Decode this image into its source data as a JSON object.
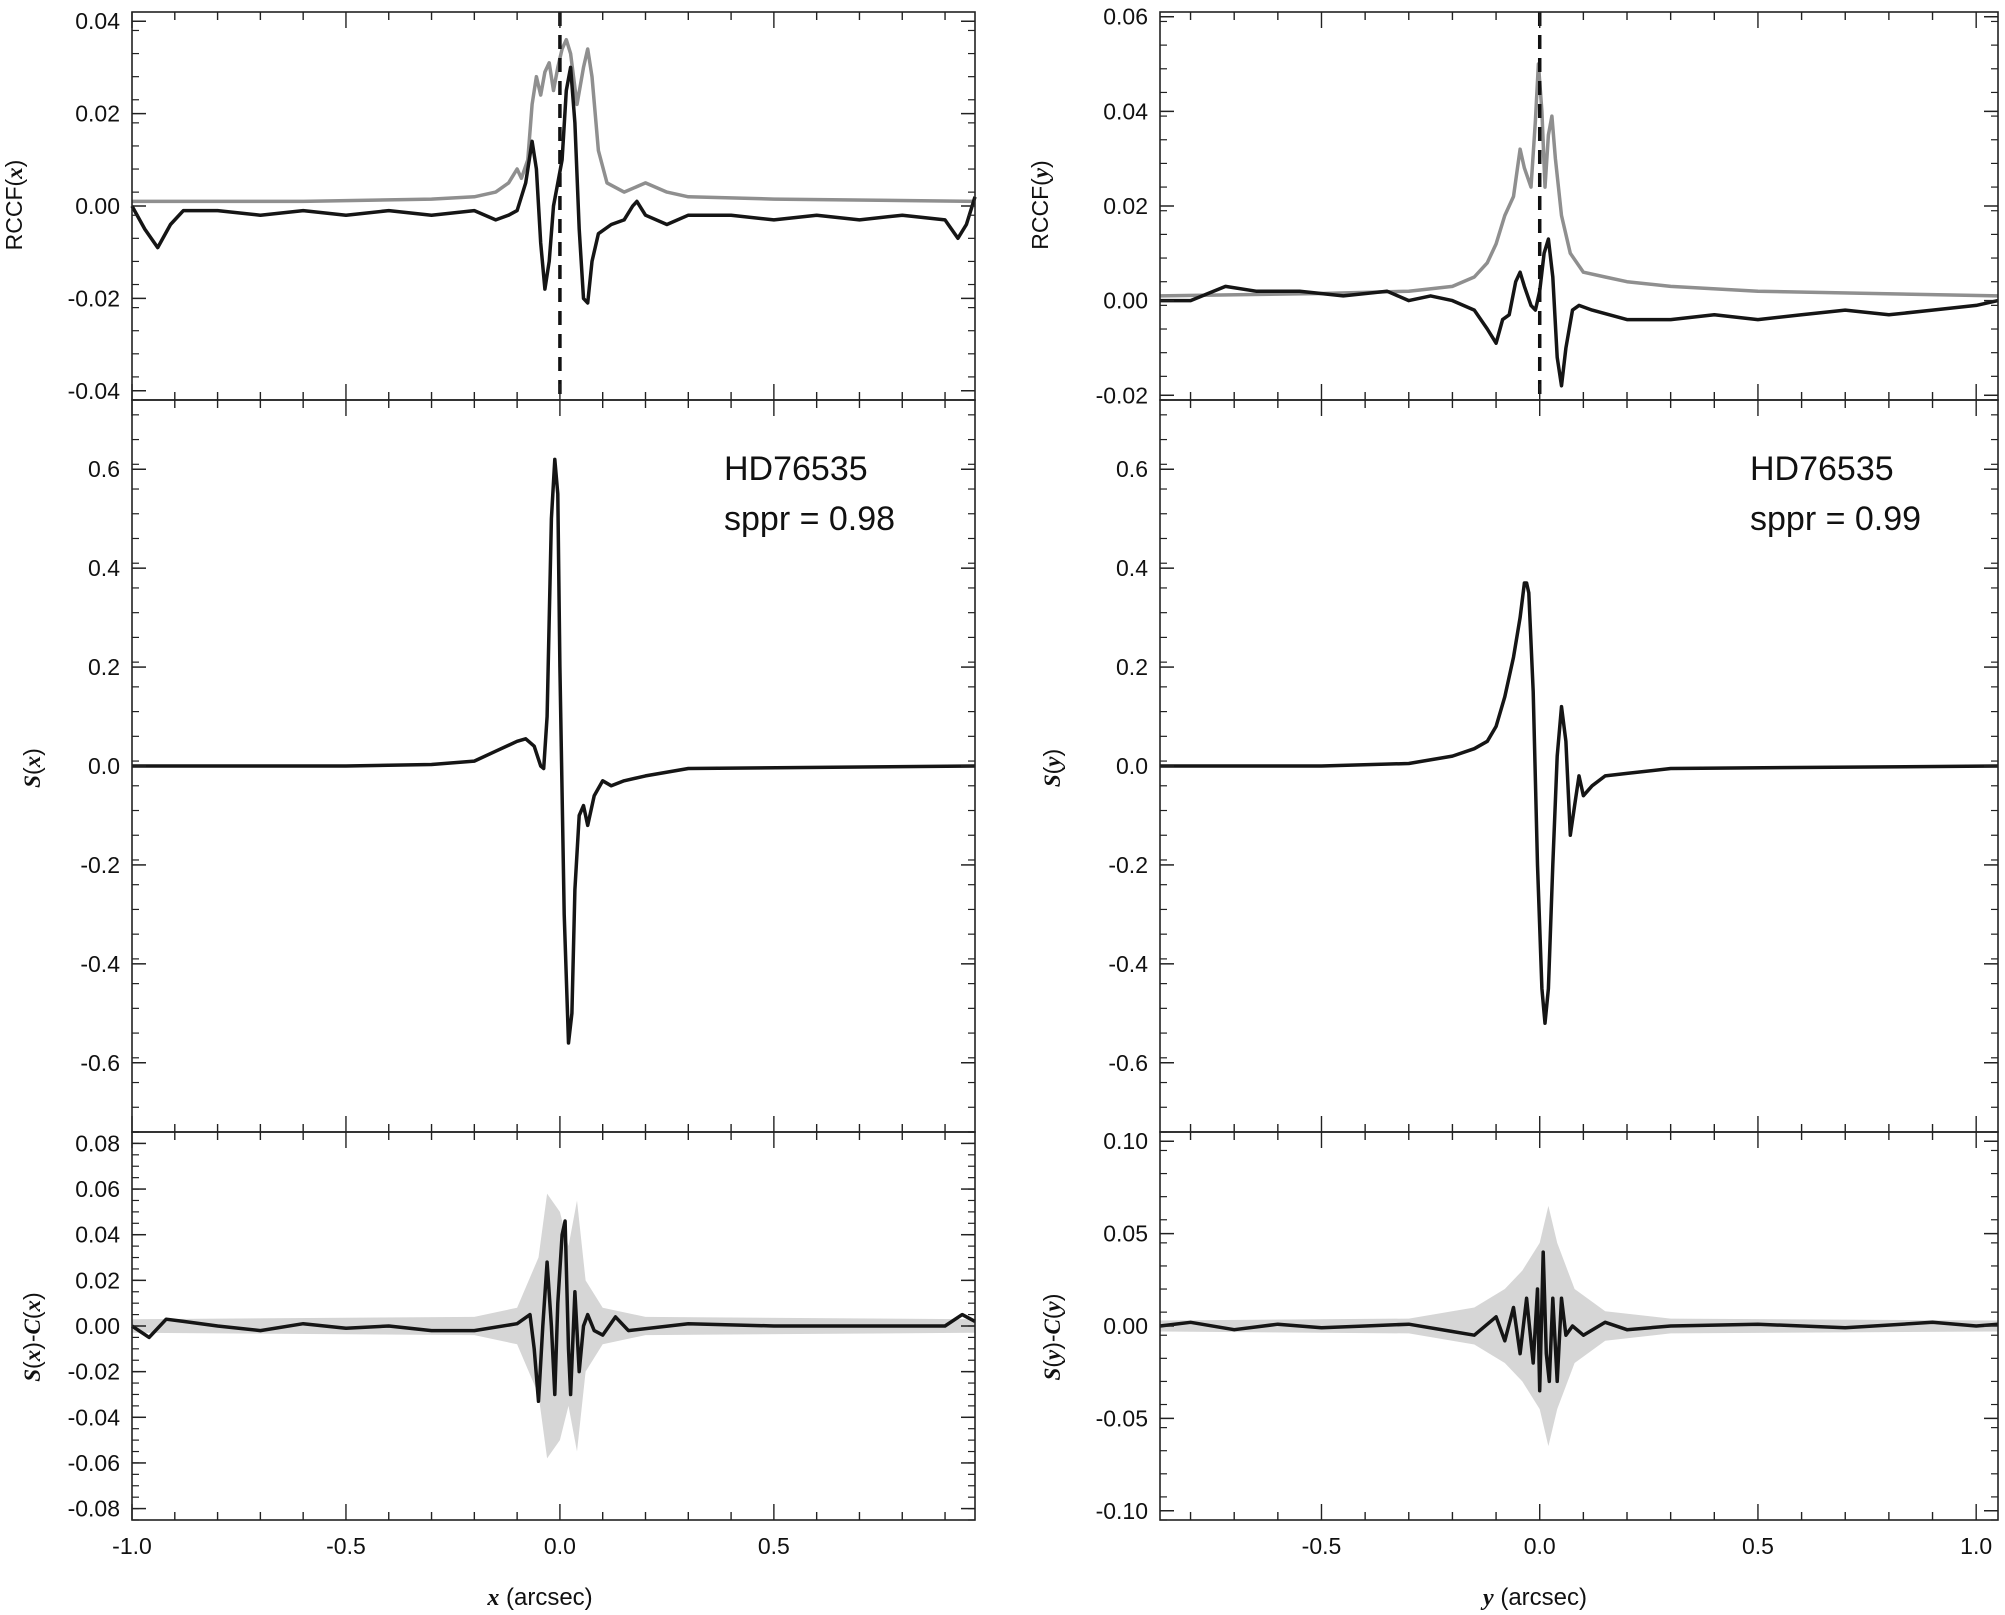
{
  "chart_data": [
    {
      "id": "left-top",
      "column": "left",
      "row": "top",
      "type": "line",
      "ylabel": "RCCF(x)",
      "xlim": [
        -1.0,
        0.97
      ],
      "ylim": [
        -0.042,
        0.042
      ],
      "yticks": [
        "0.04",
        "0.02",
        "0.00",
        "-0.02",
        "-0.04"
      ],
      "grey_values": [
        [
          -1.0,
          0.001
        ],
        [
          -0.6,
          0.001
        ],
        [
          -0.3,
          0.0015
        ],
        [
          -0.2,
          0.002
        ],
        [
          -0.15,
          0.003
        ],
        [
          -0.12,
          0.005
        ],
        [
          -0.1,
          0.008
        ],
        [
          -0.09,
          0.006
        ],
        [
          -0.075,
          0.01
        ],
        [
          -0.065,
          0.022
        ],
        [
          -0.055,
          0.028
        ],
        [
          -0.045,
          0.024
        ],
        [
          -0.035,
          0.029
        ],
        [
          -0.025,
          0.031
        ],
        [
          -0.015,
          0.025
        ],
        [
          -0.005,
          0.03
        ],
        [
          0.005,
          0.034
        ],
        [
          0.015,
          0.036
        ],
        [
          0.025,
          0.033
        ],
        [
          0.04,
          0.022
        ],
        [
          0.055,
          0.03
        ],
        [
          0.065,
          0.034
        ],
        [
          0.075,
          0.028
        ],
        [
          0.09,
          0.012
        ],
        [
          0.11,
          0.005
        ],
        [
          0.15,
          0.003
        ],
        [
          0.2,
          0.005
        ],
        [
          0.25,
          0.003
        ],
        [
          0.3,
          0.002
        ],
        [
          0.5,
          0.0015
        ],
        [
          0.97,
          0.001
        ]
      ],
      "black_values": [
        [
          -1.0,
          0.0
        ],
        [
          -0.97,
          -0.005
        ],
        [
          -0.94,
          -0.009
        ],
        [
          -0.91,
          -0.004
        ],
        [
          -0.88,
          -0.001
        ],
        [
          -0.8,
          -0.001
        ],
        [
          -0.7,
          -0.002
        ],
        [
          -0.6,
          -0.001
        ],
        [
          -0.5,
          -0.002
        ],
        [
          -0.4,
          -0.001
        ],
        [
          -0.3,
          -0.002
        ],
        [
          -0.2,
          -0.001
        ],
        [
          -0.15,
          -0.003
        ],
        [
          -0.12,
          -0.002
        ],
        [
          -0.1,
          -0.001
        ],
        [
          -0.08,
          0.005
        ],
        [
          -0.065,
          0.014
        ],
        [
          -0.055,
          0.008
        ],
        [
          -0.045,
          -0.008
        ],
        [
          -0.035,
          -0.018
        ],
        [
          -0.025,
          -0.012
        ],
        [
          -0.015,
          0.0
        ],
        [
          -0.005,
          0.005
        ],
        [
          0.005,
          0.01
        ],
        [
          0.015,
          0.025
        ],
        [
          0.025,
          0.03
        ],
        [
          0.035,
          0.018
        ],
        [
          0.045,
          -0.005
        ],
        [
          0.055,
          -0.02
        ],
        [
          0.065,
          -0.021
        ],
        [
          0.075,
          -0.012
        ],
        [
          0.09,
          -0.006
        ],
        [
          0.12,
          -0.004
        ],
        [
          0.15,
          -0.003
        ],
        [
          0.17,
          0.0
        ],
        [
          0.18,
          0.001
        ],
        [
          0.2,
          -0.002
        ],
        [
          0.25,
          -0.004
        ],
        [
          0.3,
          -0.002
        ],
        [
          0.4,
          -0.002
        ],
        [
          0.5,
          -0.003
        ],
        [
          0.6,
          -0.002
        ],
        [
          0.7,
          -0.003
        ],
        [
          0.8,
          -0.002
        ],
        [
          0.9,
          -0.003
        ],
        [
          0.93,
          -0.007
        ],
        [
          0.95,
          -0.004
        ],
        [
          0.97,
          0.002
        ]
      ],
      "vline_x": 0.0
    },
    {
      "id": "left-mid",
      "column": "left",
      "row": "mid",
      "type": "line",
      "ylabel": "S(x)",
      "xlim": [
        -1.0,
        0.97
      ],
      "ylim": [
        -0.74,
        0.74
      ],
      "yticks": [
        "0.6",
        "0.4",
        "0.2",
        "0.0",
        "-0.2",
        "-0.4",
        "-0.6"
      ],
      "annotation": [
        "HD76535",
        "sppr = 0.98"
      ],
      "black_values": [
        [
          -1.0,
          0.0
        ],
        [
          -0.5,
          0.0
        ],
        [
          -0.3,
          0.003
        ],
        [
          -0.2,
          0.01
        ],
        [
          -0.15,
          0.03
        ],
        [
          -0.1,
          0.05
        ],
        [
          -0.08,
          0.055
        ],
        [
          -0.06,
          0.04
        ],
        [
          -0.045,
          0.0
        ],
        [
          -0.038,
          -0.005
        ],
        [
          -0.03,
          0.1
        ],
        [
          -0.02,
          0.5
        ],
        [
          -0.012,
          0.62
        ],
        [
          -0.005,
          0.55
        ],
        [
          0.0,
          0.2
        ],
        [
          0.01,
          -0.3
        ],
        [
          0.02,
          -0.56
        ],
        [
          0.028,
          -0.5
        ],
        [
          0.035,
          -0.25
        ],
        [
          0.045,
          -0.1
        ],
        [
          0.055,
          -0.08
        ],
        [
          0.065,
          -0.12
        ],
        [
          0.08,
          -0.06
        ],
        [
          0.1,
          -0.03
        ],
        [
          0.12,
          -0.04
        ],
        [
          0.15,
          -0.03
        ],
        [
          0.2,
          -0.02
        ],
        [
          0.3,
          -0.005
        ],
        [
          0.97,
          0.0
        ]
      ]
    },
    {
      "id": "left-bot",
      "column": "left",
      "row": "bot",
      "type": "line",
      "ylabel": "S(x)-C(x)",
      "xlabel": "x (arcsec)",
      "xlim": [
        -1.0,
        0.97
      ],
      "ylim": [
        -0.085,
        0.085
      ],
      "yticks": [
        "0.08",
        "0.06",
        "0.04",
        "0.02",
        "0.00",
        "-0.02",
        "-0.04",
        "-0.06",
        "-0.08"
      ],
      "xticks": [
        "-1.0",
        "-0.5",
        "0.0",
        "0.5"
      ],
      "xtick_values": [
        -1.0,
        -0.5,
        0.0,
        0.5
      ],
      "band_values": [
        [
          -1.0,
          0.003
        ],
        [
          -0.2,
          0.004
        ],
        [
          -0.1,
          0.008
        ],
        [
          -0.05,
          0.03
        ],
        [
          -0.03,
          0.058
        ],
        [
          0.0,
          0.05
        ],
        [
          0.02,
          0.035
        ],
        [
          0.04,
          0.055
        ],
        [
          0.06,
          0.02
        ],
        [
          0.1,
          0.008
        ],
        [
          0.2,
          0.004
        ],
        [
          0.97,
          0.003
        ]
      ],
      "black_values": [
        [
          -1.0,
          0.0
        ],
        [
          -0.96,
          -0.005
        ],
        [
          -0.92,
          0.003
        ],
        [
          -0.88,
          0.002
        ],
        [
          -0.8,
          0.0
        ],
        [
          -0.7,
          -0.002
        ],
        [
          -0.6,
          0.001
        ],
        [
          -0.5,
          -0.001
        ],
        [
          -0.4,
          0.0
        ],
        [
          -0.3,
          -0.002
        ],
        [
          -0.2,
          -0.002
        ],
        [
          -0.1,
          0.001
        ],
        [
          -0.07,
          0.005
        ],
        [
          -0.06,
          -0.01
        ],
        [
          -0.05,
          -0.033
        ],
        [
          -0.04,
          0.0
        ],
        [
          -0.03,
          0.028
        ],
        [
          -0.02,
          0.0
        ],
        [
          -0.012,
          -0.03
        ],
        [
          -0.005,
          0.01
        ],
        [
          0.005,
          0.04
        ],
        [
          0.012,
          0.046
        ],
        [
          0.02,
          -0.01
        ],
        [
          0.025,
          -0.03
        ],
        [
          0.035,
          0.015
        ],
        [
          0.045,
          -0.02
        ],
        [
          0.055,
          0.0
        ],
        [
          0.065,
          0.005
        ],
        [
          0.08,
          -0.002
        ],
        [
          0.1,
          -0.004
        ],
        [
          0.13,
          0.004
        ],
        [
          0.16,
          -0.002
        ],
        [
          0.3,
          0.001
        ],
        [
          0.5,
          0.0
        ],
        [
          0.7,
          0.0
        ],
        [
          0.9,
          0.0
        ],
        [
          0.94,
          0.005
        ],
        [
          0.97,
          0.002
        ]
      ]
    },
    {
      "id": "right-top",
      "column": "right",
      "row": "top",
      "type": "line",
      "ylabel": "RCCF(y)",
      "xlim": [
        -0.87,
        1.05
      ],
      "ylim": [
        -0.021,
        0.061
      ],
      "yticks": [
        "0.06",
        "0.04",
        "0.02",
        "0.00",
        "-0.02"
      ],
      "grey_values": [
        [
          -0.87,
          0.001
        ],
        [
          -0.5,
          0.0015
        ],
        [
          -0.3,
          0.002
        ],
        [
          -0.2,
          0.003
        ],
        [
          -0.15,
          0.005
        ],
        [
          -0.12,
          0.008
        ],
        [
          -0.1,
          0.012
        ],
        [
          -0.08,
          0.018
        ],
        [
          -0.06,
          0.022
        ],
        [
          -0.045,
          0.032
        ],
        [
          -0.035,
          0.028
        ],
        [
          -0.02,
          0.024
        ],
        [
          -0.01,
          0.038
        ],
        [
          -0.003,
          0.05
        ],
        [
          0.005,
          0.04
        ],
        [
          0.012,
          0.024
        ],
        [
          0.02,
          0.035
        ],
        [
          0.028,
          0.039
        ],
        [
          0.036,
          0.03
        ],
        [
          0.05,
          0.018
        ],
        [
          0.07,
          0.01
        ],
        [
          0.1,
          0.006
        ],
        [
          0.15,
          0.005
        ],
        [
          0.2,
          0.004
        ],
        [
          0.3,
          0.003
        ],
        [
          0.5,
          0.002
        ],
        [
          1.05,
          0.001
        ]
      ],
      "black_values": [
        [
          -0.87,
          0.0
        ],
        [
          -0.8,
          0.0
        ],
        [
          -0.72,
          0.003
        ],
        [
          -0.65,
          0.002
        ],
        [
          -0.55,
          0.002
        ],
        [
          -0.45,
          0.001
        ],
        [
          -0.35,
          0.002
        ],
        [
          -0.3,
          0.0
        ],
        [
          -0.25,
          0.001
        ],
        [
          -0.2,
          0.0
        ],
        [
          -0.15,
          -0.002
        ],
        [
          -0.12,
          -0.006
        ],
        [
          -0.1,
          -0.009
        ],
        [
          -0.085,
          -0.004
        ],
        [
          -0.07,
          -0.003
        ],
        [
          -0.055,
          0.004
        ],
        [
          -0.045,
          0.006
        ],
        [
          -0.035,
          0.003
        ],
        [
          -0.02,
          -0.001
        ],
        [
          -0.01,
          -0.002
        ],
        [
          0.0,
          0.002
        ],
        [
          0.01,
          0.01
        ],
        [
          0.02,
          0.013
        ],
        [
          0.03,
          0.005
        ],
        [
          0.04,
          -0.012
        ],
        [
          0.05,
          -0.018
        ],
        [
          0.06,
          -0.01
        ],
        [
          0.075,
          -0.002
        ],
        [
          0.09,
          -0.001
        ],
        [
          0.12,
          -0.002
        ],
        [
          0.2,
          -0.004
        ],
        [
          0.3,
          -0.004
        ],
        [
          0.4,
          -0.003
        ],
        [
          0.5,
          -0.004
        ],
        [
          0.6,
          -0.003
        ],
        [
          0.7,
          -0.002
        ],
        [
          0.8,
          -0.003
        ],
        [
          0.9,
          -0.002
        ],
        [
          1.0,
          -0.001
        ],
        [
          1.05,
          0.0
        ]
      ],
      "vline_x": 0.0
    },
    {
      "id": "right-mid",
      "column": "right",
      "row": "mid",
      "type": "line",
      "ylabel": "S(y)",
      "xlim": [
        -0.87,
        1.05
      ],
      "ylim": [
        -0.74,
        0.74
      ],
      "yticks": [
        "0.6",
        "0.4",
        "0.2",
        "0.0",
        "-0.2",
        "-0.4",
        "-0.6"
      ],
      "annotation": [
        "HD76535",
        "sppr = 0.99"
      ],
      "black_values": [
        [
          -0.87,
          0.0
        ],
        [
          -0.5,
          0.0
        ],
        [
          -0.3,
          0.005
        ],
        [
          -0.2,
          0.02
        ],
        [
          -0.15,
          0.035
        ],
        [
          -0.12,
          0.05
        ],
        [
          -0.1,
          0.08
        ],
        [
          -0.08,
          0.14
        ],
        [
          -0.06,
          0.22
        ],
        [
          -0.045,
          0.3
        ],
        [
          -0.035,
          0.37
        ],
        [
          -0.03,
          0.37
        ],
        [
          -0.025,
          0.35
        ],
        [
          -0.015,
          0.15
        ],
        [
          -0.005,
          -0.2
        ],
        [
          0.005,
          -0.45
        ],
        [
          0.012,
          -0.52
        ],
        [
          0.02,
          -0.45
        ],
        [
          0.03,
          -0.2
        ],
        [
          0.04,
          0.02
        ],
        [
          0.05,
          0.12
        ],
        [
          0.06,
          0.05
        ],
        [
          0.07,
          -0.14
        ],
        [
          0.08,
          -0.08
        ],
        [
          0.09,
          -0.02
        ],
        [
          0.1,
          -0.06
        ],
        [
          0.12,
          -0.04
        ],
        [
          0.15,
          -0.02
        ],
        [
          0.2,
          -0.015
        ],
        [
          0.3,
          -0.005
        ],
        [
          1.05,
          0.0
        ]
      ]
    },
    {
      "id": "right-bot",
      "column": "right",
      "row": "bot",
      "type": "line",
      "ylabel": "S(y)-C(y)",
      "xlabel": "y (arcsec)",
      "xlim": [
        -0.87,
        1.05
      ],
      "ylim": [
        -0.105,
        0.105
      ],
      "yticks": [
        "0.10",
        "0.05",
        "0.00",
        "-0.05",
        "-0.10"
      ],
      "xticks": [
        "-0.5",
        "0.0",
        "0.5",
        "1.0"
      ],
      "xtick_values": [
        -0.5,
        0.0,
        0.5,
        1.0
      ],
      "band_values": [
        [
          -0.87,
          0.003
        ],
        [
          -0.3,
          0.004
        ],
        [
          -0.15,
          0.01
        ],
        [
          -0.08,
          0.02
        ],
        [
          -0.04,
          0.03
        ],
        [
          0.0,
          0.045
        ],
        [
          0.02,
          0.065
        ],
        [
          0.04,
          0.045
        ],
        [
          0.08,
          0.02
        ],
        [
          0.15,
          0.008
        ],
        [
          0.3,
          0.004
        ],
        [
          1.05,
          0.003
        ]
      ],
      "black_values": [
        [
          -0.87,
          0.0
        ],
        [
          -0.8,
          0.002
        ],
        [
          -0.7,
          -0.002
        ],
        [
          -0.6,
          0.001
        ],
        [
          -0.5,
          -0.001
        ],
        [
          -0.4,
          0.0
        ],
        [
          -0.3,
          0.001
        ],
        [
          -0.2,
          -0.003
        ],
        [
          -0.15,
          -0.005
        ],
        [
          -0.1,
          0.005
        ],
        [
          -0.08,
          -0.008
        ],
        [
          -0.06,
          0.01
        ],
        [
          -0.045,
          -0.015
        ],
        [
          -0.03,
          0.015
        ],
        [
          -0.015,
          -0.02
        ],
        [
          -0.005,
          0.02
        ],
        [
          0.0,
          -0.035
        ],
        [
          0.008,
          0.04
        ],
        [
          0.015,
          -0.015
        ],
        [
          0.022,
          -0.03
        ],
        [
          0.03,
          0.015
        ],
        [
          0.04,
          -0.03
        ],
        [
          0.05,
          0.015
        ],
        [
          0.06,
          -0.005
        ],
        [
          0.075,
          0.0
        ],
        [
          0.1,
          -0.005
        ],
        [
          0.15,
          0.002
        ],
        [
          0.2,
          -0.002
        ],
        [
          0.3,
          0.0
        ],
        [
          0.5,
          0.001
        ],
        [
          0.7,
          -0.001
        ],
        [
          0.9,
          0.002
        ],
        [
          1.0,
          0.0
        ],
        [
          1.05,
          0.001
        ]
      ]
    }
  ]
}
